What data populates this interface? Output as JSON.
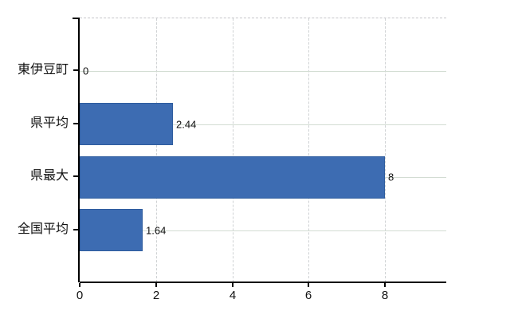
{
  "chart_data": {
    "type": "bar",
    "orientation": "horizontal",
    "title": "",
    "xlabel": "",
    "ylabel": "",
    "categories": [
      "東伊豆町",
      "県平均",
      "県最大",
      "全国平均"
    ],
    "values": [
      0,
      2.44,
      8,
      1.64
    ],
    "value_labels": [
      "0",
      "2.44",
      "8",
      "1.64"
    ],
    "x_ticks": [
      0,
      2,
      4,
      6,
      8
    ],
    "x_tick_labels": [
      "0",
      "2",
      "4",
      "6",
      "8"
    ],
    "xlim": [
      0,
      9.6
    ],
    "grid": true,
    "legend": "none",
    "colors": {
      "bar_fill": "#3d6cb2",
      "bar_border": "#2e5c9e",
      "h_gridline": "#d2dcd2",
      "v_gridline": "#cfd2d4",
      "plot_top_border": "#c6c6ca",
      "axis": "#000000",
      "text": "#111111",
      "background": "#ffffff"
    }
  }
}
